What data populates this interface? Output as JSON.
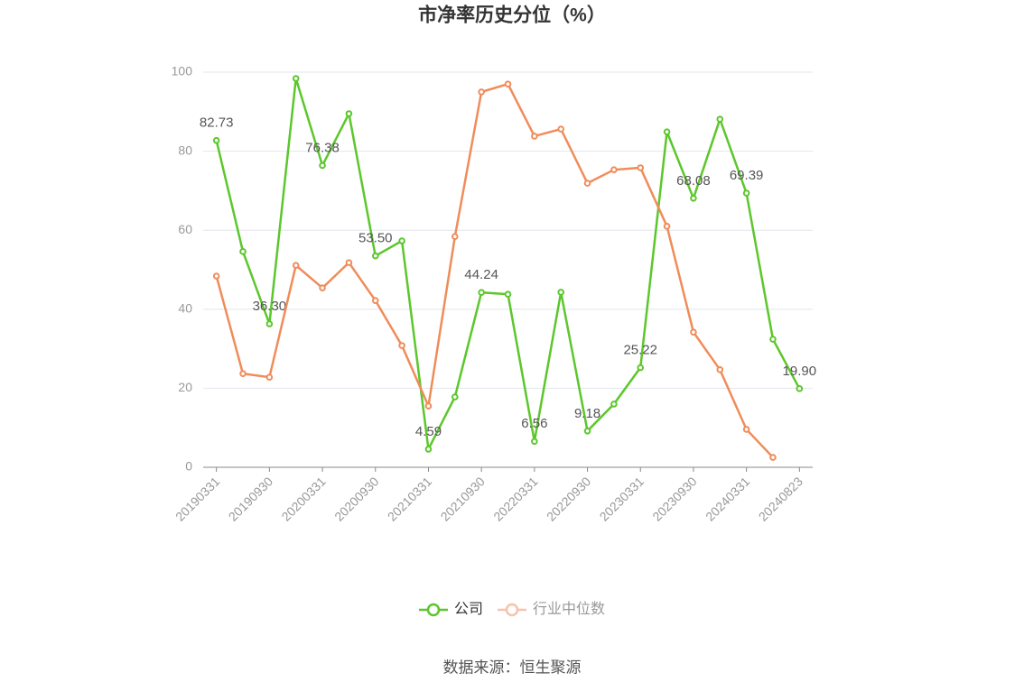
{
  "chart_data": {
    "type": "line",
    "title": "市净率历史分位（%）",
    "categories": [
      "20190331",
      null,
      "20190930",
      null,
      "20200331",
      null,
      "20200930",
      null,
      "20210331",
      null,
      "20210930",
      null,
      "20220331",
      null,
      "20220930",
      null,
      "20230331",
      null,
      "20230930",
      null,
      "20240331",
      null,
      "20240823"
    ],
    "series": [
      {
        "name": "公司",
        "color": "#5cc72c",
        "values": [
          82.73,
          54.6,
          36.3,
          98.4,
          76.38,
          89.5,
          53.5,
          57.3,
          4.59,
          17.8,
          44.24,
          43.8,
          6.56,
          44.3,
          9.18,
          16.0,
          25.22,
          84.9,
          68.08,
          88.1,
          69.39,
          32.4,
          19.9
        ],
        "value_labels": [
          "82.73",
          null,
          "36.30",
          null,
          "76.38",
          null,
          "53.50",
          null,
          "4.59",
          null,
          "44.24",
          null,
          "6.56",
          null,
          "9.18",
          null,
          "25.22",
          null,
          "68.08",
          null,
          "69.39",
          null,
          "19.90"
        ]
      },
      {
        "name": "行业中位数",
        "color": "#f08c5a",
        "values": [
          48.4,
          23.7,
          22.8,
          51.1,
          45.4,
          51.8,
          42.2,
          30.8,
          15.5,
          58.4,
          95.0,
          97.0,
          83.8,
          85.6,
          71.9,
          75.3,
          75.8,
          61.0,
          34.2,
          24.7,
          9.6,
          2.5,
          null
        ]
      }
    ],
    "ylim": [
      0,
      100
    ],
    "yticks": [
      0,
      20,
      40,
      60,
      80,
      100
    ],
    "grid": true,
    "source": "数据来源：恒生聚源"
  }
}
